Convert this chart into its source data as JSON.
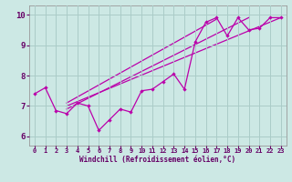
{
  "xlabel": "Windchill (Refroidissement éolien,°C)",
  "xlim": [
    -0.5,
    23.5
  ],
  "ylim": [
    5.7,
    10.3
  ],
  "yticks": [
    6,
    7,
    8,
    9,
    10
  ],
  "xticks": [
    0,
    1,
    2,
    3,
    4,
    5,
    6,
    7,
    8,
    9,
    10,
    11,
    12,
    13,
    14,
    15,
    16,
    17,
    18,
    19,
    20,
    21,
    22,
    23
  ],
  "bg_color": "#cce8e4",
  "grid_color": "#aaccc8",
  "line_color": "#bb00aa",
  "main_x": [
    0,
    1,
    2,
    3,
    4,
    5,
    6,
    7,
    8,
    9,
    10,
    11,
    12,
    13,
    14,
    15,
    16,
    17,
    18,
    19,
    20,
    21,
    22,
    23
  ],
  "main_y": [
    7.4,
    7.6,
    6.85,
    6.75,
    7.1,
    7.0,
    6.2,
    6.55,
    6.9,
    6.8,
    7.5,
    7.55,
    7.8,
    8.05,
    7.55,
    9.1,
    9.75,
    9.9,
    9.3,
    9.9,
    9.5,
    9.55,
    9.9,
    9.9
  ],
  "trend1_x": [
    3,
    23
  ],
  "trend1_y": [
    7.0,
    9.9
  ],
  "trend2_x": [
    3,
    17
  ],
  "trend2_y": [
    7.1,
    9.85
  ],
  "trend3_x": [
    3,
    20
  ],
  "trend3_y": [
    6.9,
    9.9
  ]
}
